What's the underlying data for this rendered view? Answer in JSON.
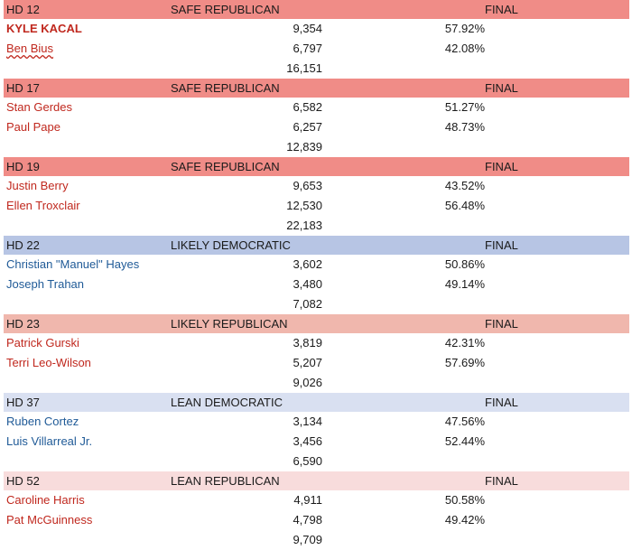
{
  "races": [
    {
      "district": "HD 12",
      "rating": "SAFE REPUBLICAN",
      "status": "FINAL",
      "color": "#f08c87",
      "candidates": [
        {
          "name": "KYLE KACAL",
          "votes": "9,354",
          "pct": "57.92%",
          "party": "rep",
          "bold": true
        },
        {
          "name": "Ben Bius",
          "votes": "6,797",
          "pct": "42.08%",
          "party": "rep"
        }
      ],
      "total": "16,151"
    },
    {
      "district": "HD 17",
      "rating": "SAFE REPUBLICAN",
      "status": "FINAL",
      "color": "#f08c87",
      "candidates": [
        {
          "name": "Stan Gerdes",
          "votes": "6,582",
          "pct": "51.27%",
          "party": "rep"
        },
        {
          "name": "Paul Pape",
          "votes": "6,257",
          "pct": "48.73%",
          "party": "rep"
        }
      ],
      "total": "12,839"
    },
    {
      "district": "HD 19",
      "rating": "SAFE REPUBLICAN",
      "status": "FINAL",
      "color": "#f08c87",
      "candidates": [
        {
          "name": "Justin Berry",
          "votes": "9,653",
          "pct": "43.52%",
          "party": "rep"
        },
        {
          "name": "Ellen Troxclair",
          "votes": "12,530",
          "pct": "56.48%",
          "party": "rep"
        }
      ],
      "total": "22,183"
    },
    {
      "district": "HD 22",
      "rating": "LIKELY DEMOCRATIC",
      "status": "FINAL",
      "color": "#b7c5e4",
      "candidates": [
        {
          "name": "Christian \"Manuel\" Hayes",
          "votes": "3,602",
          "pct": "50.86%",
          "party": "dem"
        },
        {
          "name": "Joseph Trahan",
          "votes": "3,480",
          "pct": "49.14%",
          "party": "dem"
        }
      ],
      "total": "7,082"
    },
    {
      "district": "HD 23",
      "rating": "LIKELY REPUBLICAN",
      "status": "FINAL",
      "color": "#f0b7ad",
      "candidates": [
        {
          "name": "Patrick Gurski",
          "votes": "3,819",
          "pct": "42.31%",
          "party": "rep"
        },
        {
          "name": "Terri Leo-Wilson",
          "votes": "5,207",
          "pct": "57.69%",
          "party": "rep"
        }
      ],
      "total": "9,026"
    },
    {
      "district": "HD 37",
      "rating": "LEAN DEMOCRATIC",
      "status": "FINAL",
      "color": "#d9e0f1",
      "candidates": [
        {
          "name": "Ruben Cortez",
          "votes": "3,134",
          "pct": "47.56%",
          "party": "dem"
        },
        {
          "name": "Luis Villarreal Jr.",
          "votes": "3,456",
          "pct": "52.44%",
          "party": "dem"
        }
      ],
      "total": "6,590"
    },
    {
      "district": "HD 52",
      "rating": "LEAN REPUBLICAN",
      "status": "FINAL",
      "color": "#f8dcdc",
      "candidates": [
        {
          "name": "Caroline Harris",
          "votes": "4,911",
          "pct": "50.58%",
          "party": "rep"
        },
        {
          "name": "Pat McGuinness",
          "votes": "4,798",
          "pct": "49.42%",
          "party": "rep"
        }
      ],
      "total": "9,709"
    }
  ]
}
